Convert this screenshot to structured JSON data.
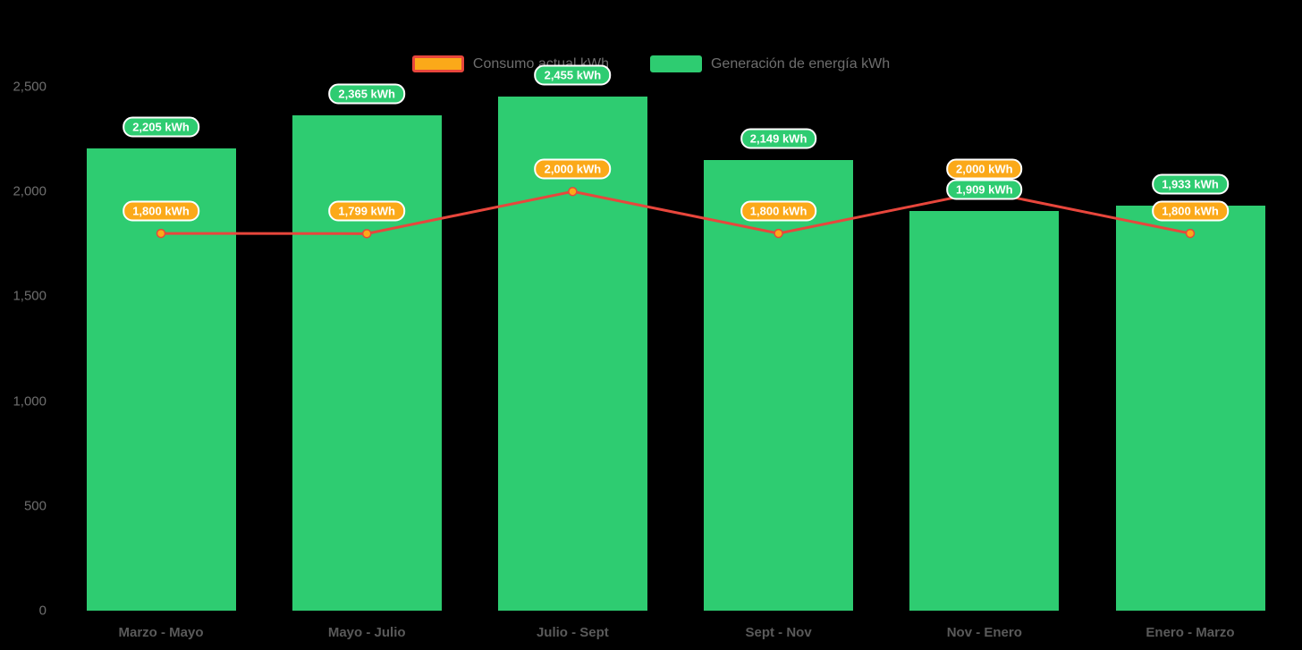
{
  "chart_data": {
    "type": "combo",
    "title": "",
    "categories": [
      "Marzo - Mayo",
      "Mayo - Julio",
      "Julio - Sept",
      "Sept - Nov",
      "Nov - Enero",
      "Enero - Marzo"
    ],
    "series": [
      {
        "name": "Consumo actual kWh",
        "type": "line",
        "values": [
          1800,
          1799,
          2000,
          1800,
          2000,
          1800
        ],
        "point_labels": [
          "1,800 kWh",
          "1,799 kWh",
          "2,000 kWh",
          "1,800 kWh",
          "2,000 kWh",
          "1,800 kWh"
        ],
        "line_color": "#E8463C",
        "marker_color": "#FBA919",
        "label_bg": "#FBA919"
      },
      {
        "name": "Generación de energía kWh",
        "type": "bar",
        "values": [
          2205,
          2365,
          2455,
          2149,
          1909,
          1933
        ],
        "point_labels": [
          "2,205 kWh",
          "2,365 kWh",
          "2,455 kWh",
          "2,149 kWh",
          "1,909 kWh",
          "1,933 kWh"
        ],
        "bar_color": "#2ECC71",
        "label_bg": "#2ECC71"
      }
    ],
    "y_axis": {
      "min": 0,
      "max": 2500,
      "tick_values": [
        0,
        500,
        1000,
        1500,
        2000,
        2500
      ],
      "tick_labels": [
        "0",
        "500",
        "1,000",
        "1,500",
        "2,000",
        "2,500"
      ]
    },
    "legend": {
      "position": "top"
    },
    "grid": "off",
    "background": "#000000",
    "text_colors": {
      "axis_ticks": "#6e6e6e",
      "category_labels": "#5a5a5a",
      "legend": "#6e6e6e",
      "value_labels": "#ffffff"
    }
  }
}
